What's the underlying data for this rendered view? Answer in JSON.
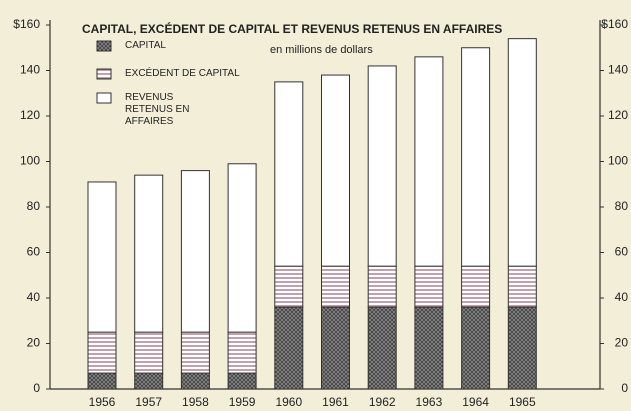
{
  "chart_data": {
    "type": "stacked-bar",
    "title": "CAPITAL, EXCÉDENT DE CAPITAL ET REVENUS RETENUS EN AFFAIRES",
    "subtitle": "en millions de dollars",
    "categories": [
      "1956",
      "1957",
      "1958",
      "1959",
      "1960",
      "1961",
      "1962",
      "1963",
      "1964",
      "1965"
    ],
    "series": [
      {
        "name": "CAPITAL",
        "color": "#4a4a4a",
        "pattern": "crosshatch",
        "values": [
          7,
          7,
          7,
          7,
          36,
          36,
          36,
          36,
          36,
          36
        ]
      },
      {
        "name": "EXCÉDENT DE CAPITAL",
        "color": "#a06f80",
        "pattern": "horizontal",
        "values": [
          18,
          18,
          18,
          18,
          18,
          18,
          18,
          18,
          18,
          18
        ]
      },
      {
        "name": "REVENUS RETENUS EN AFFAIRES",
        "color": "#ffffff",
        "pattern": "none",
        "values": [
          66,
          69,
          71,
          74,
          81,
          84,
          88,
          92,
          96,
          100
        ]
      }
    ],
    "ylim": [
      0,
      160
    ],
    "yticks": [
      0,
      20,
      40,
      60,
      80,
      100,
      120,
      140,
      {
        "value": 160,
        "label": "$160"
      }
    ],
    "y2lim": [
      0,
      160
    ],
    "y2ticks": [
      0,
      20,
      40,
      60,
      80,
      100,
      120,
      140,
      {
        "value": 160,
        "label": "$160"
      }
    ],
    "grid": false
  }
}
